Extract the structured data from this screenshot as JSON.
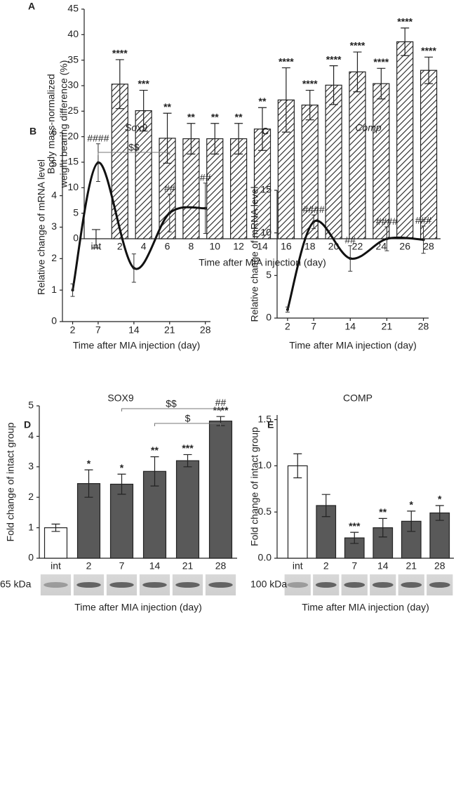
{
  "chart_data": [
    {
      "type": "bar",
      "panel": "A",
      "hatch": true,
      "color": "#222222",
      "categories": [
        "int",
        "2",
        "4",
        "6",
        "8",
        "10",
        "12",
        "14",
        "16",
        "18",
        "20",
        "22",
        "24",
        "26",
        "28"
      ],
      "values": [
        0,
        30.3,
        25.1,
        19.7,
        19.6,
        19.6,
        19.6,
        21.5,
        27.2,
        26.2,
        30.1,
        32.7,
        30.4,
        38.6,
        33.0
      ],
      "errors": [
        1.8,
        4.8,
        4.0,
        4.9,
        3.0,
        3.0,
        3.0,
        4.2,
        6.3,
        2.9,
        3.8,
        3.9,
        3.0,
        2.7,
        2.6
      ],
      "annotations": [
        null,
        "****",
        "***",
        "**",
        "**",
        "**",
        "**",
        "**",
        "****",
        "****",
        "****",
        "****",
        "****",
        "****",
        "****"
      ],
      "ylim": [
        0,
        45
      ],
      "yticks": [
        0,
        5,
        10,
        15,
        20,
        25,
        30,
        35,
        40,
        45
      ],
      "ylabel": [
        "Body mass-normalized",
        "weight bearing difference (%)"
      ],
      "xlabel": "Time after MIA injection (day)"
    },
    {
      "type": "line",
      "panel": "B",
      "title": "Sox9",
      "title_italic": true,
      "color": "#111111",
      "x": [
        2,
        7,
        14,
        21,
        28
      ],
      "values": [
        1.0,
        5.05,
        1.7,
        3.45,
        3.6
      ],
      "errors": [
        0.2,
        0.6,
        0.45,
        0.6,
        0.8
      ],
      "annotations": [
        null,
        "####",
        null,
        "##",
        "##"
      ],
      "brackets": [
        {
          "from": 7,
          "to": 21,
          "label": "$$"
        }
      ],
      "xlim": [
        0,
        29
      ],
      "xticks": [
        2,
        7,
        14,
        21,
        28
      ],
      "ylim": [
        0,
        6
      ],
      "yticks": [
        0,
        1,
        2,
        3,
        4,
        5,
        6
      ],
      "ylabel": [
        "Relative change of mRNA level"
      ],
      "xlabel": "Time after MIA injection (day)"
    },
    {
      "type": "line",
      "panel": "C",
      "title": "Comp",
      "title_italic": true,
      "color": "#111111",
      "x": [
        2,
        7,
        14,
        21,
        28
      ],
      "values": [
        1.0,
        11.3,
        7.0,
        9.3,
        9.2
      ],
      "errors": [
        0.3,
        0.8,
        1.5,
        1.4,
        1.6
      ],
      "annotations": [
        null,
        "####",
        "##",
        "####",
        "###"
      ],
      "xlim": [
        0,
        29
      ],
      "xticks": [
        2,
        7,
        14,
        21,
        28
      ],
      "ylim": [
        0,
        15
      ],
      "yticks": [
        0,
        5,
        10,
        15
      ],
      "ylabel": [
        "Relative change of mRNA level"
      ],
      "xlabel": "Time after MIA injection (day)"
    },
    {
      "type": "bar",
      "panel": "D",
      "title": "SOX9",
      "categories": [
        "int",
        "2",
        "7",
        "14",
        "21",
        "28"
      ],
      "values": [
        1.0,
        2.45,
        2.43,
        2.85,
        3.2,
        4.5
      ],
      "errors": [
        0.12,
        0.45,
        0.33,
        0.48,
        0.2,
        0.15
      ],
      "colors": [
        "#ffffff",
        "#595959",
        "#595959",
        "#595959",
        "#595959",
        "#595959"
      ],
      "annotations": [
        null,
        "*",
        "*",
        "**",
        "***",
        "****"
      ],
      "annotations_upper": [
        null,
        null,
        null,
        null,
        null,
        "##"
      ],
      "brackets": [
        {
          "from": "7",
          "to": "28",
          "label": "$$"
        },
        {
          "from": "14",
          "to": "28",
          "label": "$"
        }
      ],
      "ylim": [
        0,
        5
      ],
      "yticks": [
        0,
        1,
        2,
        3,
        4,
        5
      ],
      "ylabel": [
        "Fold change of intact group"
      ],
      "blot_label": "65 kDa",
      "xlabel": "Time after MIA injection (day)"
    },
    {
      "type": "bar",
      "panel": "E",
      "title": "COMP",
      "categories": [
        "int",
        "2",
        "7",
        "14",
        "21",
        "28"
      ],
      "values": [
        1.0,
        0.57,
        0.22,
        0.33,
        0.4,
        0.49
      ],
      "errors": [
        0.13,
        0.12,
        0.06,
        0.1,
        0.11,
        0.08
      ],
      "colors": [
        "#ffffff",
        "#595959",
        "#595959",
        "#595959",
        "#595959",
        "#595959"
      ],
      "annotations": [
        null,
        null,
        "***",
        "**",
        "*",
        "*"
      ],
      "ylim": [
        0,
        1.55
      ],
      "yticks": [
        {
          "value": 0,
          "label": "0.0"
        },
        {
          "value": 0.5,
          "label": "0.5"
        },
        {
          "value": 1,
          "label": "1.0"
        },
        {
          "value": 1.5,
          "label": "1.5"
        }
      ],
      "ylabel": [
        "Fold change of intact group"
      ],
      "blot_label": "100 kDa",
      "xlabel": "Time after MIA injection (day)"
    }
  ]
}
